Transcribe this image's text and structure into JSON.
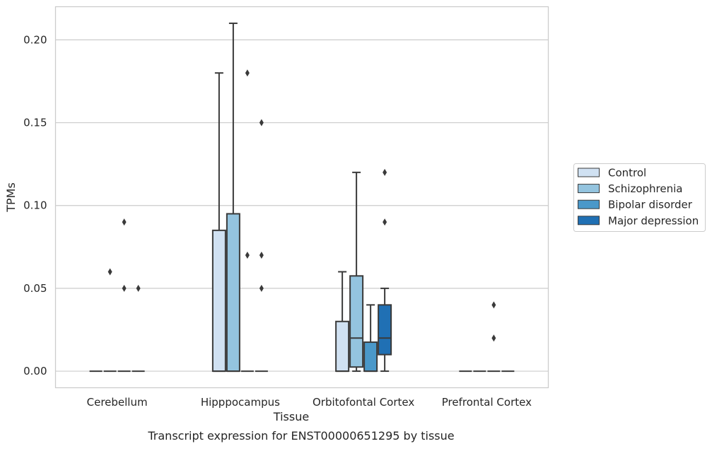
{
  "chart_data": {
    "type": "boxplot",
    "xlabel": "Tissue",
    "ylabel": "TPMs",
    "caption": "Transcript expression for ENST00000651295 by tissue",
    "ylim": [
      -0.01,
      0.22
    ],
    "yticks": [
      0.0,
      0.05,
      0.1,
      0.15,
      0.2
    ],
    "ytick_labels": [
      "0.00",
      "0.05",
      "0.10",
      "0.15",
      "0.20"
    ],
    "grid": "horizontal",
    "legend_position": "right",
    "categories": [
      "Cerebellum",
      "Hipppocampus",
      "Orbitofontal Cortex",
      "Prefrontal Cortex"
    ],
    "series": [
      {
        "name": "Control",
        "color": "#d0e1f2",
        "boxes": [
          {
            "q1": 0,
            "median": 0,
            "q3": 0,
            "whislo": 0,
            "whishi": 0,
            "fliers": []
          },
          {
            "q1": 0,
            "median": 0,
            "q3": 0.085,
            "whislo": 0,
            "whishi": 0.18,
            "fliers": []
          },
          {
            "q1": 0,
            "median": 0,
            "q3": 0.03,
            "whislo": 0,
            "whishi": 0.06,
            "fliers": []
          },
          {
            "q1": 0,
            "median": 0,
            "q3": 0,
            "whislo": 0,
            "whishi": 0,
            "fliers": []
          }
        ]
      },
      {
        "name": "Schizophrenia",
        "color": "#94c4df",
        "boxes": [
          {
            "q1": 0,
            "median": 0,
            "q3": 0,
            "whislo": 0,
            "whishi": 0,
            "fliers": [
              0.06
            ]
          },
          {
            "q1": 0,
            "median": 0,
            "q3": 0.095,
            "whislo": 0,
            "whishi": 0.21,
            "fliers": []
          },
          {
            "q1": 0.0025,
            "median": 0.02,
            "q3": 0.0575,
            "whislo": 0,
            "whishi": 0.12,
            "fliers": []
          },
          {
            "q1": 0,
            "median": 0,
            "q3": 0,
            "whislo": 0,
            "whishi": 0,
            "fliers": []
          }
        ]
      },
      {
        "name": "Bipolar disorder",
        "color": "#4a98c9",
        "boxes": [
          {
            "q1": 0,
            "median": 0,
            "q3": 0,
            "whislo": 0,
            "whishi": 0,
            "fliers": [
              0.05,
              0.09
            ]
          },
          {
            "q1": 0,
            "median": 0,
            "q3": 0,
            "whislo": 0,
            "whishi": 0,
            "fliers": [
              0.07,
              0.18
            ]
          },
          {
            "q1": 0,
            "median": 0,
            "q3": 0.0175,
            "whislo": 0,
            "whishi": 0.04,
            "fliers": []
          },
          {
            "q1": 0,
            "median": 0,
            "q3": 0,
            "whislo": 0,
            "whishi": 0,
            "fliers": [
              0.02,
              0.04
            ]
          }
        ]
      },
      {
        "name": "Major depression",
        "color": "#2070b4",
        "boxes": [
          {
            "q1": 0,
            "median": 0,
            "q3": 0,
            "whislo": 0,
            "whishi": 0,
            "fliers": [
              0.05
            ]
          },
          {
            "q1": 0,
            "median": 0,
            "q3": 0,
            "whislo": 0,
            "whishi": 0,
            "fliers": [
              0.05,
              0.07,
              0.15
            ]
          },
          {
            "q1": 0.01,
            "median": 0.02,
            "q3": 0.04,
            "whislo": 0,
            "whishi": 0.05,
            "fliers": [
              0.09,
              0.12
            ]
          },
          {
            "q1": 0,
            "median": 0,
            "q3": 0,
            "whislo": 0,
            "whishi": 0,
            "fliers": []
          }
        ]
      }
    ]
  }
}
